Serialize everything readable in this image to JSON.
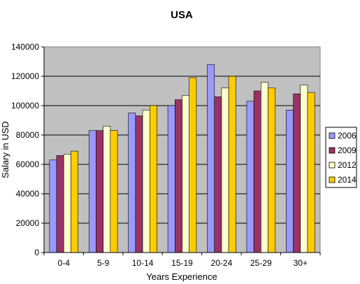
{
  "chart_data": {
    "type": "bar",
    "title": "USA",
    "xlabel": "Years Experience",
    "ylabel": "Salary in USD",
    "ylim": [
      0,
      140000
    ],
    "yticks": [
      0,
      20000,
      40000,
      60000,
      80000,
      100000,
      120000,
      140000
    ],
    "grid": true,
    "legend_position": "right",
    "plot_background": "#c0c0c0",
    "categories": [
      "0-4",
      "5-9",
      "10-14",
      "15-19",
      "20-24",
      "25-29",
      "30+"
    ],
    "series": [
      {
        "name": "2006",
        "color": "#9999ff",
        "values": [
          63000,
          83000,
          95000,
          100000,
          128000,
          103000,
          97000
        ]
      },
      {
        "name": "2009",
        "color": "#993366",
        "values": [
          66000,
          83000,
          93000,
          104000,
          106000,
          110000,
          108000
        ]
      },
      {
        "name": "2012",
        "color": "#ffffcc",
        "values": [
          67000,
          86000,
          97000,
          107000,
          112000,
          116000,
          114000
        ]
      },
      {
        "name": "2014",
        "color": "#ffcc00",
        "values": [
          69000,
          83000,
          100000,
          119000,
          120000,
          112000,
          109000
        ]
      }
    ]
  }
}
